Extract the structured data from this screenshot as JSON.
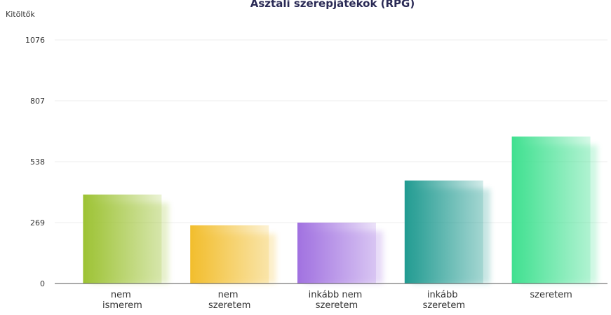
{
  "chart_data": {
    "type": "bar",
    "title": "Asztali szerepjátékok (RPG)",
    "y_label": "Kitöltők",
    "categories": [
      "nem ismerem",
      "nem szeretem",
      "inkább nem szeretem",
      "inkább szeretem",
      "szeretem"
    ],
    "values": [
      393,
      257,
      269,
      455,
      649
    ],
    "colors": [
      "#9cc232",
      "#f2bd2b",
      "#a070e0",
      "#1f9a90",
      "#3ee08f"
    ],
    "ylim": [
      0,
      1076
    ],
    "yticks": [
      0,
      269,
      538,
      807,
      1076
    ],
    "grid": true
  }
}
